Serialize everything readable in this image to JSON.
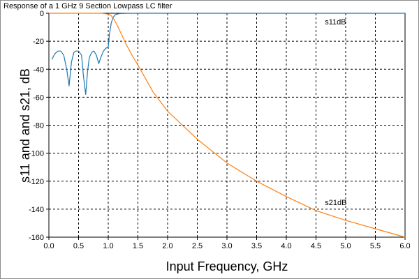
{
  "chart_data": {
    "type": "line",
    "title": "Response of a 1 GHz 9 Section Lowpass LC filter",
    "xlabel": "Input Frequency, GHz",
    "ylabel": "s11 and and s21, dB",
    "xlim": [
      0,
      6
    ],
    "ylim": [
      -160,
      0
    ],
    "xticks": [
      0.0,
      0.5,
      1.0,
      1.5,
      2.0,
      2.5,
      3.0,
      3.5,
      4.0,
      4.5,
      5.0,
      5.5,
      6.0
    ],
    "xtick_labels": [
      "0.0",
      "0.5",
      "1.0",
      "1.5",
      "2.0",
      "2.5",
      "3.0",
      "3.5",
      "4.0",
      "4.5",
      "5.0",
      "5.5",
      "6.0"
    ],
    "yticks": [
      0,
      -20,
      -40,
      -60,
      -80,
      -100,
      -120,
      -140,
      -160
    ],
    "ytick_labels": [
      "0",
      "-20",
      "-40",
      "-60",
      "-80",
      "-100",
      "-120",
      "-140",
      "-160"
    ],
    "grid": true,
    "annotations": [
      {
        "text": "s11dB",
        "x": 4.65,
        "y": -6
      },
      {
        "text": "s21dB",
        "x": 4.65,
        "y": -135
      }
    ],
    "series": [
      {
        "name": "s11dB",
        "color": "#1f77b4",
        "x": [
          0.05,
          0.1,
          0.15,
          0.2,
          0.25,
          0.3,
          0.34,
          0.38,
          0.42,
          0.45,
          0.5,
          0.55,
          0.58,
          0.62,
          0.65,
          0.68,
          0.72,
          0.76,
          0.8,
          0.84,
          0.88,
          0.92,
          0.96,
          1.0,
          1.02,
          1.05,
          1.08,
          1.12,
          1.16,
          1.2,
          1.3,
          1.5,
          2.0,
          3.0,
          4.0,
          5.0,
          6.0
        ],
        "y": [
          -33,
          -29,
          -27,
          -27,
          -30,
          -40,
          -52,
          -35,
          -28,
          -27,
          -27,
          -30,
          -44,
          -58,
          -42,
          -32,
          -28,
          -27,
          -30,
          -36,
          -31,
          -27,
          -25,
          -24,
          -15,
          -7,
          -3,
          -1,
          -0.5,
          -0.2,
          -0.1,
          0,
          0,
          0,
          0,
          0,
          0
        ]
      },
      {
        "name": "s21dB",
        "color": "#ff7f0e",
        "x": [
          0.0,
          0.2,
          0.4,
          0.6,
          0.8,
          0.9,
          1.0,
          1.05,
          1.1,
          1.15,
          1.2,
          1.25,
          1.3,
          1.4,
          1.5,
          1.75,
          2.0,
          2.5,
          3.0,
          3.5,
          4.0,
          4.5,
          5.0,
          5.5,
          6.0
        ],
        "y": [
          0,
          0,
          0,
          0,
          0,
          -0.1,
          -0.6,
          -1.8,
          -4.5,
          -8.5,
          -13,
          -17.5,
          -22,
          -30,
          -37,
          -56,
          -70,
          -90,
          -107,
          -120,
          -131,
          -141,
          -148,
          -154,
          -160
        ]
      }
    ]
  }
}
